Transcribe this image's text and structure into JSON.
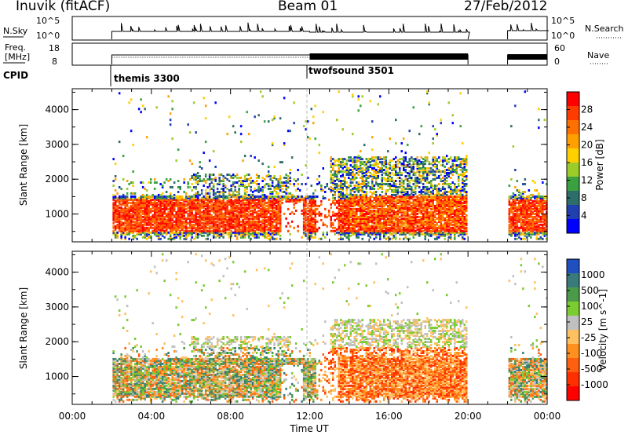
{
  "header": {
    "site": "Inuvik (fitACF)",
    "beam": "Beam 01",
    "date": "27/Feb/2012"
  },
  "strips": {
    "nsky_label": "N.Sky",
    "nsky_ticks": [
      "10^5",
      "10^0"
    ],
    "nsearch_label": "N.Search",
    "nsearch_ticks": [
      "10^5",
      "10^0"
    ],
    "freq_label_1": "Freq.",
    "freq_label_2": "[MHz]",
    "freq_ticks": [
      "18",
      "8"
    ],
    "nave_label": "Nave",
    "nave_ticks": [
      "60",
      "0"
    ],
    "cpid_label": "CPID",
    "cpid_segments": [
      {
        "name": "themis 3300",
        "start_hour": 2.0
      },
      {
        "name": "twofsound 3501",
        "start_hour": 12.0
      }
    ]
  },
  "chart_data": [
    {
      "type": "heatmap",
      "title": "Power",
      "ylabel": "Slant Range [km]",
      "yticks": [
        "1000",
        "2000",
        "3000",
        "4000"
      ],
      "ylim": [
        200,
        4600
      ],
      "xlim_hours": [
        0,
        24
      ],
      "colorbar_label": "Power [dB]",
      "colorbar_ticks": [
        "28",
        "24",
        "20",
        "16",
        "12",
        "8",
        "4"
      ],
      "colorbar_colors": [
        "#0000ff",
        "#2040b0",
        "#2e6e6a",
        "#3aa040",
        "#9ccc2a",
        "#ffd000",
        "#ffa000",
        "#ff7000",
        "#ff3c00",
        "#ff0000"
      ],
      "data_segments_hours": [
        [
          2.0,
          12.0
        ],
        [
          12.0,
          20.0
        ],
        [
          22.0,
          24.0
        ]
      ],
      "dominant_range_km": [
        400,
        1500
      ]
    },
    {
      "type": "heatmap",
      "title": "Velocity",
      "ylabel": "Slant Range [km]",
      "yticks": [
        "1000",
        "2000",
        "3000",
        "4000"
      ],
      "ylim": [
        200,
        4600
      ],
      "xlim_hours": [
        0,
        24
      ],
      "colorbar_label": "Velocity [m s^-1]",
      "colorbar_ticks": [
        "1000",
        "500",
        "100",
        "25",
        "-25",
        "-100",
        "-500",
        "-1000"
      ],
      "colorbar_colors": [
        "#2050c0",
        "#3a7a7a",
        "#4a9a4a",
        "#7acc30",
        "#c0c0c0",
        "#ffc060",
        "#ff9020",
        "#ff6010",
        "#ff3000",
        "#ff0000"
      ],
      "data_segments_hours": [
        [
          2.0,
          12.0
        ],
        [
          12.0,
          20.0
        ],
        [
          22.0,
          24.0
        ]
      ],
      "dominant_range_km": [
        400,
        1500
      ]
    }
  ],
  "xaxis": {
    "ticks": [
      "00:00",
      "04:00",
      "08:00",
      "12:00",
      "16:00",
      "20:00",
      "00:00"
    ],
    "label": "Time UT"
  }
}
